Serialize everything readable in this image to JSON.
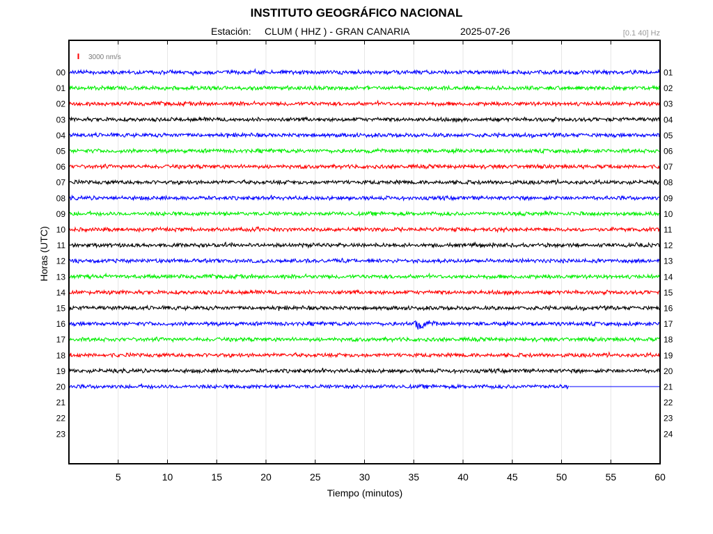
{
  "header": {
    "title": "INSTITUTO GEOGRÁFICO NACIONAL",
    "station_label": "Estación:",
    "station": "CLUM ( HHZ ) - GRAN CANARIA",
    "date": "2025-07-26",
    "filter": "[0.1 40] Hz"
  },
  "chart_data": {
    "type": "line",
    "title": "INSTITUTO GEOGRÁFICO NACIONAL",
    "xlabel": "Tiempo (minutos)",
    "ylabel": "Horas (UTC)",
    "xlim": [
      0,
      60
    ],
    "x_ticks": [
      5,
      10,
      15,
      20,
      25,
      30,
      35,
      40,
      45,
      50,
      55,
      60
    ],
    "left_labels": [
      "00",
      "01",
      "02",
      "03",
      "04",
      "05",
      "06",
      "07",
      "08",
      "09",
      "10",
      "11",
      "12",
      "13",
      "14",
      "15",
      "16",
      "17",
      "18",
      "19",
      "20",
      "21",
      "22",
      "23"
    ],
    "right_labels": [
      "01",
      "02",
      "03",
      "04",
      "05",
      "06",
      "07",
      "08",
      "09",
      "10",
      "11",
      "12",
      "13",
      "14",
      "15",
      "16",
      "17",
      "18",
      "19",
      "20",
      "21",
      "22",
      "23",
      "24"
    ],
    "scale_label": "3000 nm/s",
    "grid": true,
    "trace_colors": [
      "#0000ff",
      "#00ee00",
      "#ff0000",
      "#000000"
    ],
    "traces": [
      {
        "hour": "00",
        "end_min": 60
      },
      {
        "hour": "01",
        "end_min": 60
      },
      {
        "hour": "02",
        "end_min": 60
      },
      {
        "hour": "03",
        "end_min": 60
      },
      {
        "hour": "04",
        "end_min": 60
      },
      {
        "hour": "05",
        "end_min": 60
      },
      {
        "hour": "06",
        "end_min": 60
      },
      {
        "hour": "07",
        "end_min": 60
      },
      {
        "hour": "08",
        "end_min": 60
      },
      {
        "hour": "09",
        "end_min": 60
      },
      {
        "hour": "10",
        "end_min": 60
      },
      {
        "hour": "11",
        "end_min": 60
      },
      {
        "hour": "12",
        "end_min": 60
      },
      {
        "hour": "13",
        "end_min": 60
      },
      {
        "hour": "14",
        "end_min": 60
      },
      {
        "hour": "15",
        "end_min": 60
      },
      {
        "hour": "16",
        "end_min": 60,
        "event_min": 35
      },
      {
        "hour": "17",
        "end_min": 60
      },
      {
        "hour": "18",
        "end_min": 60
      },
      {
        "hour": "19",
        "end_min": 60
      },
      {
        "hour": "20",
        "end_min": 50.8
      }
    ]
  }
}
